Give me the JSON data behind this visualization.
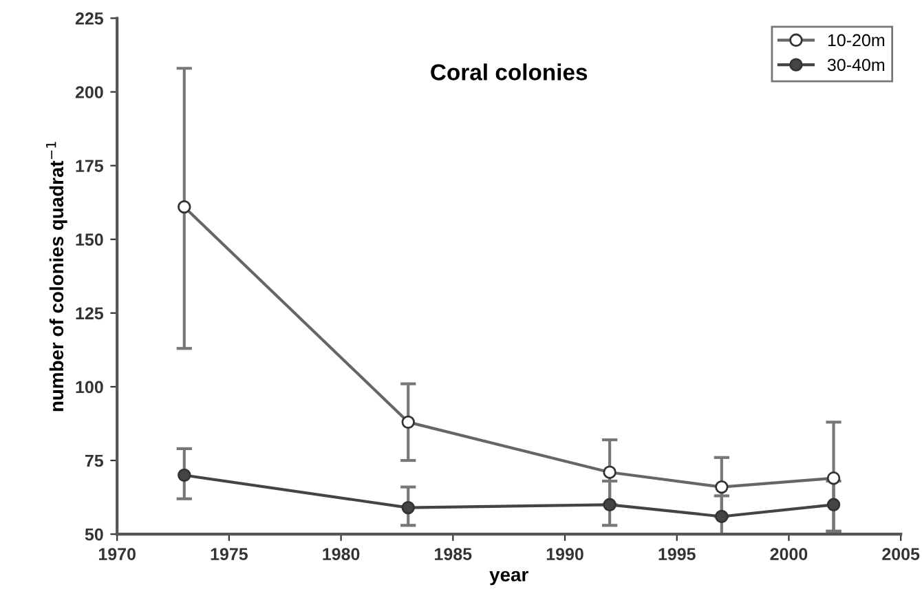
{
  "chart_data": {
    "type": "line",
    "title": "Coral colonies",
    "xlabel": "year",
    "ylabel": "number of colonies quadrat$^{−1}$",
    "x": [
      1973,
      1983,
      1992,
      1997,
      2002
    ],
    "series": [
      {
        "name": "10-20m",
        "color": "#666666",
        "values": [
          161,
          88,
          71,
          66,
          69
        ],
        "errors": [
          [
            113,
            208
          ],
          [
            75,
            101
          ],
          [
            60,
            82
          ],
          [
            56,
            76
          ],
          [
            51,
            88
          ]
        ]
      },
      {
        "name": "30-40m",
        "color": "#444444",
        "values": [
          70,
          59,
          60,
          56,
          60
        ],
        "errors": [
          [
            62,
            79
          ],
          [
            53,
            66
          ],
          [
            53,
            68
          ],
          [
            50,
            63
          ],
          [
            51,
            68
          ]
        ]
      }
    ],
    "xlim": [
      1970,
      2005
    ],
    "xticks": [
      1970,
      1975,
      1980,
      1985,
      1990,
      1995,
      2000,
      2005
    ],
    "ylim": [
      50,
      225
    ],
    "yticks": [
      50,
      75,
      100,
      125,
      150,
      175,
      200,
      225
    ],
    "marker": "circle",
    "line_style": "solid",
    "grid": false,
    "legend": "top right"
  }
}
